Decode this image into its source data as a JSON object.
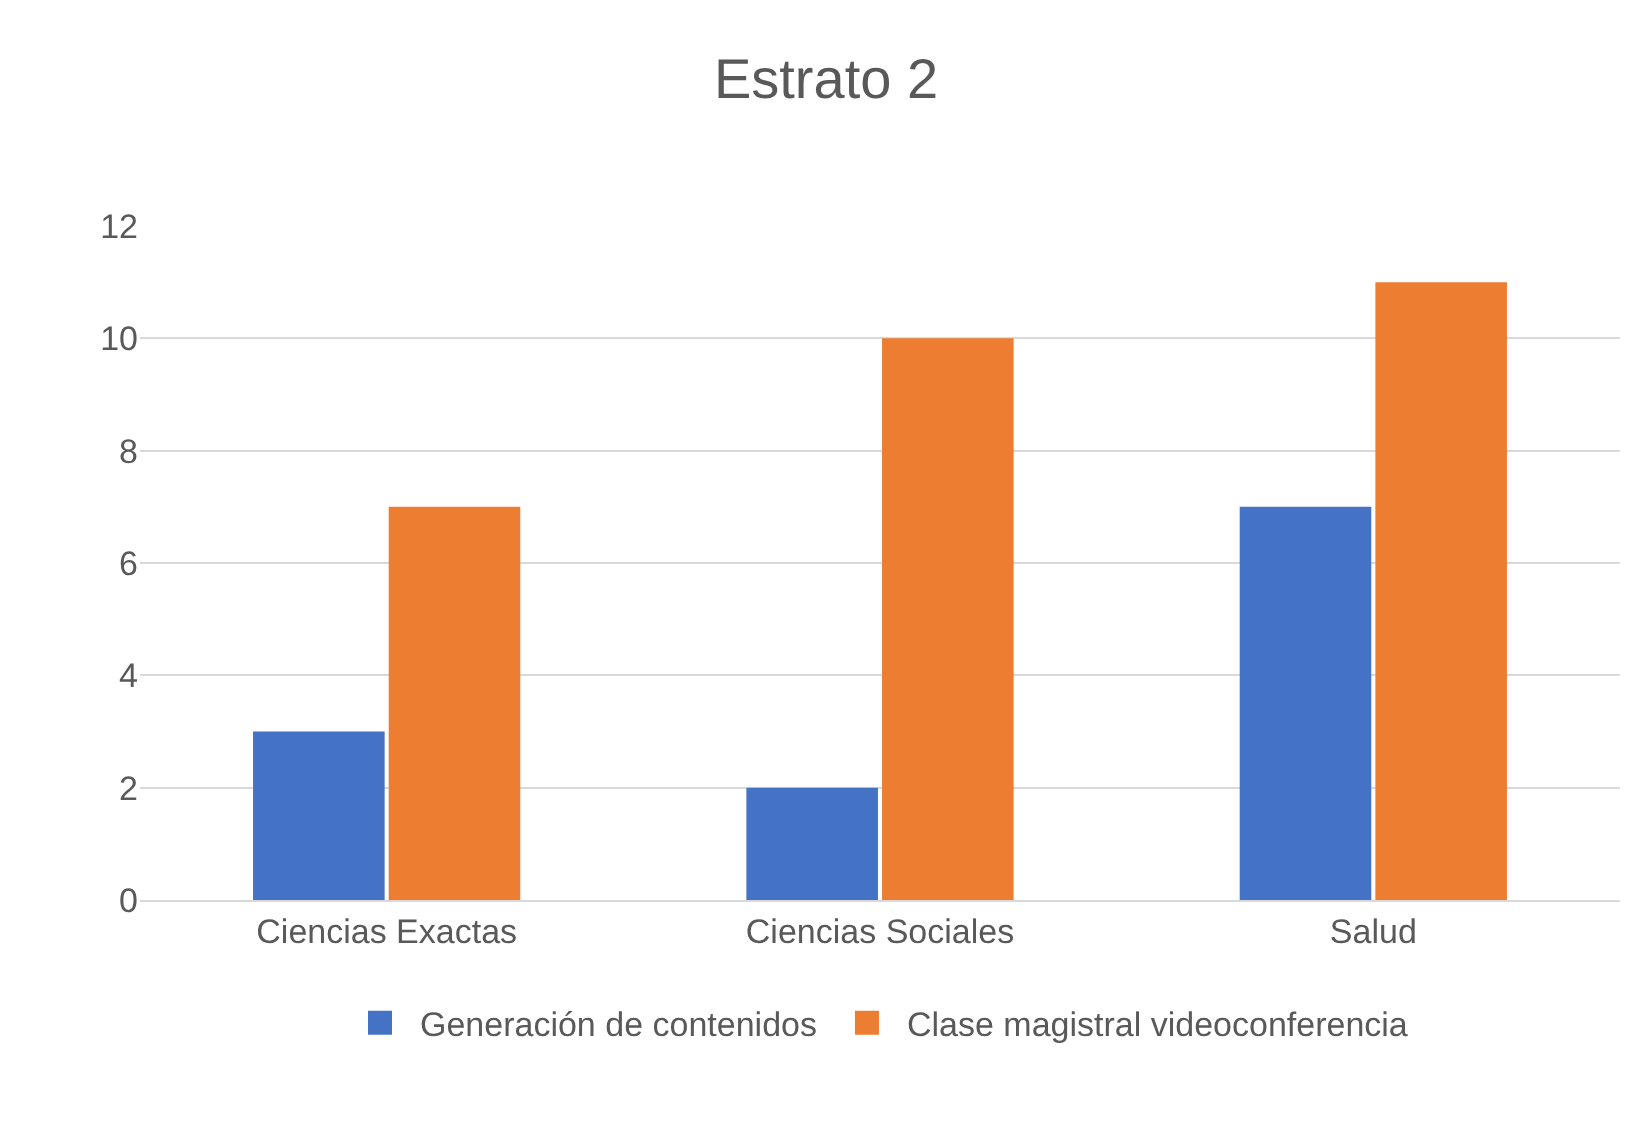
{
  "chart_data": {
    "type": "bar",
    "title": "Estrato 2",
    "categories": [
      "Ciencias Exactas",
      "Ciencias Sociales",
      "Salud"
    ],
    "series": [
      {
        "name": "Generación de contenidos",
        "color": "#4472c4",
        "values": [
          3,
          2,
          7
        ]
      },
      {
        "name": "Clase magistral videoconferencia",
        "color": "#ed7d31",
        "values": [
          7,
          10,
          11
        ]
      }
    ],
    "ylim": [
      0,
      12
    ],
    "yticks": [
      0,
      2,
      4,
      6,
      8,
      10,
      12
    ],
    "grid": "y",
    "legend": "bottom"
  }
}
